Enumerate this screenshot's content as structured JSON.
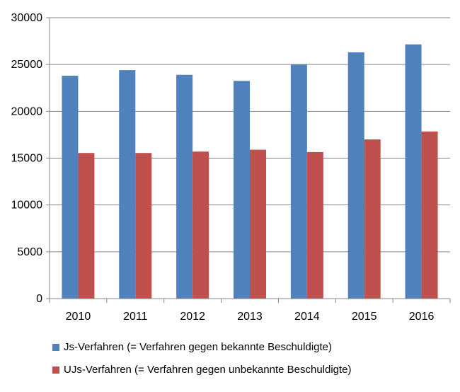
{
  "chart_data": {
    "type": "bar",
    "categories": [
      "2010",
      "2011",
      "2012",
      "2013",
      "2014",
      "2015",
      "2016"
    ],
    "series": [
      {
        "name": "Js-Verfahren (= Verfahren gegen bekannte Beschuldigte)",
        "values": [
          23800,
          24400,
          23900,
          23250,
          25000,
          26300,
          27150
        ],
        "color": "#4F81BD"
      },
      {
        "name": "UJs-Verfahren (= Verfahren gegen unbekannte Beschuldigte)",
        "values": [
          15550,
          15550,
          15700,
          15900,
          15650,
          17000,
          17850
        ],
        "color": "#C0504D"
      }
    ],
    "yticks": [
      "0",
      "5000",
      "10000",
      "15000",
      "20000",
      "25000",
      "30000"
    ],
    "ylim": [
      0,
      30000
    ],
    "grid": true,
    "legend_position": "bottom"
  }
}
